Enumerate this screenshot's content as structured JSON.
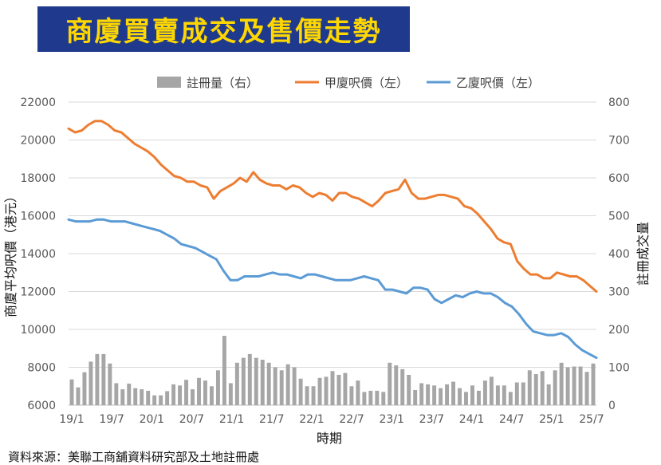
{
  "title": "商廈買賣成交及售價走勢",
  "source": "資料來源：美聯工商舖資料研究部及土地註冊處",
  "colors": {
    "title_bg": "#1f3a8c",
    "title_text": "#ffd700",
    "bar": "#a6a6a6",
    "series_a": "#ed7d31",
    "series_b": "#5b9bd5",
    "grid": "#d9d9d9"
  },
  "chart_data": {
    "type": "bar+line",
    "xlabel": "時期",
    "ylabel_left": "商廈平均呎價（港元）",
    "ylabel_right": "註冊成交量",
    "ylim_left": [
      6000,
      22000
    ],
    "ylim_right": [
      0,
      800
    ],
    "yticks_left": [
      "22000",
      "20000",
      "18000",
      "16000",
      "14000",
      "12000",
      "10000",
      "8000",
      "6000"
    ],
    "yticks_right": [
      "800",
      "700",
      "600",
      "500",
      "400",
      "300",
      "200",
      "100",
      "0"
    ],
    "xticks": [
      "19/1",
      "19/7",
      "20/1",
      "20/7",
      "21/1",
      "21/7",
      "22/1",
      "22/7",
      "23/1",
      "23/7",
      "24/1",
      "24/7",
      "25/1",
      "25/7"
    ],
    "grid": "horizontal",
    "legend_position": "top",
    "legend": [
      {
        "label": "註冊量（右）",
        "kind": "bar",
        "color": "#a6a6a6"
      },
      {
        "label": "甲廈呎價（左）",
        "kind": "line",
        "color": "#ed7d31"
      },
      {
        "label": "乙廈呎價（左）",
        "kind": "line",
        "color": "#5b9bd5"
      }
    ],
    "series": [
      {
        "name": "註冊量（右）",
        "type": "bar",
        "axis": "right",
        "values": [
          68,
          47,
          87,
          115,
          135,
          135,
          110,
          58,
          42,
          57,
          45,
          42,
          38,
          26,
          26,
          37,
          55,
          52,
          67,
          42,
          72,
          65,
          50,
          92,
          183,
          58,
          112,
          125,
          135,
          125,
          120,
          112,
          100,
          92,
          108,
          100,
          70,
          50,
          50,
          72,
          75,
          90,
          80,
          85,
          50,
          65,
          35,
          38,
          38,
          35,
          112,
          105,
          95,
          80,
          40,
          58,
          55,
          52,
          45,
          55,
          62,
          45,
          35,
          52,
          38,
          65,
          75,
          52,
          52,
          35,
          60,
          60,
          92,
          82,
          90,
          55,
          92,
          112,
          100,
          102,
          102,
          88,
          110
        ]
      },
      {
        "name": "甲廈呎價（左）",
        "type": "line",
        "axis": "left",
        "values": [
          20600,
          20400,
          20500,
          20800,
          21000,
          21000,
          20800,
          20500,
          20400,
          20100,
          19800,
          19600,
          19400,
          19100,
          18700,
          18400,
          18100,
          18000,
          17800,
          17800,
          17600,
          17500,
          16900,
          17300,
          17500,
          17700,
          18000,
          17800,
          18300,
          17900,
          17700,
          17600,
          17600,
          17400,
          17600,
          17500,
          17200,
          17000,
          17200,
          17100,
          16800,
          17200,
          17200,
          17000,
          16900,
          16700,
          16500,
          16800,
          17200,
          17300,
          17400,
          17900,
          17200,
          16900,
          16900,
          17000,
          17100,
          17100,
          17000,
          16900,
          16500,
          16400,
          16100,
          15700,
          15300,
          14800,
          14600,
          14500,
          13600,
          13200,
          12900,
          12900,
          12700,
          12700,
          13000,
          12900,
          12800,
          12800,
          12600,
          12300,
          12000
        ]
      },
      {
        "name": "乙廈呎價（左）",
        "type": "line",
        "axis": "left",
        "values": [
          15800,
          15700,
          15700,
          15700,
          15800,
          15800,
          15700,
          15700,
          15700,
          15600,
          15500,
          15400,
          15300,
          15200,
          15000,
          14800,
          14500,
          14400,
          14300,
          14100,
          13900,
          13700,
          13100,
          12600,
          12600,
          12800,
          12800,
          12800,
          12900,
          13000,
          12900,
          12900,
          12800,
          12700,
          12900,
          12900,
          12800,
          12700,
          12600,
          12600,
          12600,
          12700,
          12800,
          12700,
          12600,
          12100,
          12100,
          12000,
          11900,
          12200,
          12200,
          12100,
          11600,
          11400,
          11600,
          11800,
          11700,
          11900,
          12000,
          11900,
          11900,
          11700,
          11400,
          11200,
          10800,
          10300,
          9900,
          9800,
          9700,
          9700,
          9800,
          9600,
          9200,
          8900,
          8700,
          8500
        ]
      }
    ]
  }
}
